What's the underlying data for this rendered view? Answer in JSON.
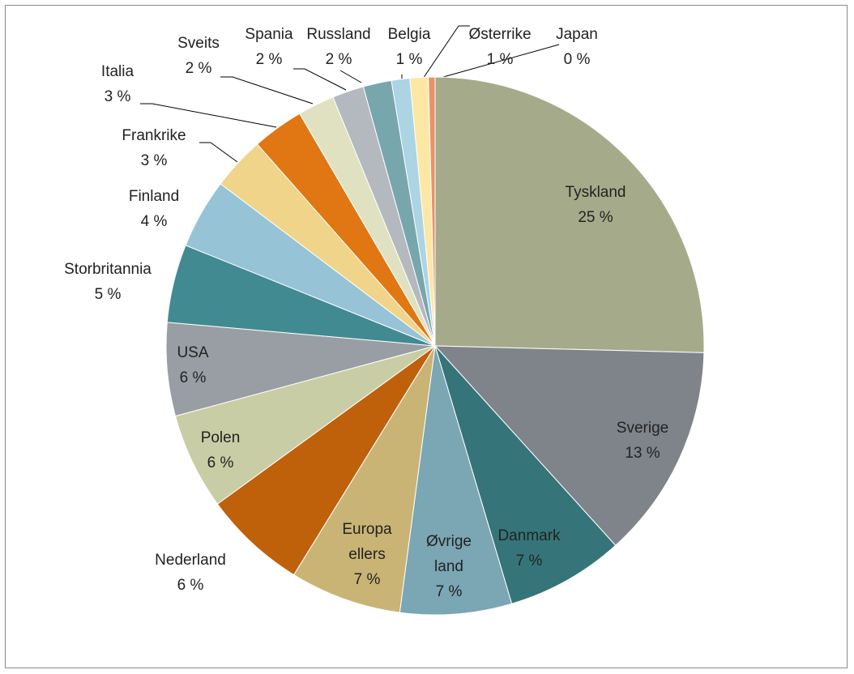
{
  "chart_data": {
    "type": "pie",
    "categories": [
      "Tyskland",
      "Sverige",
      "Danmark",
      "Øvrige land",
      "Europa ellers",
      "Nederland",
      "Polen",
      "USA",
      "Storbritannia",
      "Finland",
      "Frankrike",
      "Italia",
      "Sveits",
      "Spania",
      "Russland",
      "Belgia",
      "Østerrike",
      "Japan"
    ],
    "values": [
      25.4,
      12.9,
      7.1,
      6.7,
      6.7,
      6.2,
      5.8,
      5.6,
      4.7,
      4.2,
      3.2,
      3.1,
      2.2,
      1.9,
      1.7,
      1.1,
      1.1,
      0.4
    ],
    "value_labels": [
      "25 %",
      "13 %",
      "7 %",
      "7 %",
      "7 %",
      "6 %",
      "6 %",
      "6 %",
      "5 %",
      "4 %",
      "3 %",
      "3 %",
      "2 %",
      "2 %",
      "2 %",
      "1 %",
      "1 %",
      "0 %"
    ],
    "colors": [
      "#a5ab8a",
      "#7f848b",
      "#357579",
      "#7ba6b3",
      "#c9b475",
      "#bf600b",
      "#c8cda5",
      "#999ea4",
      "#428a91",
      "#96c3d6",
      "#f0d48a",
      "#e07712",
      "#dfe1c1",
      "#b4b8bf",
      "#78a6ad",
      "#acd4e2",
      "#fde7a4",
      "#e79368"
    ]
  }
}
